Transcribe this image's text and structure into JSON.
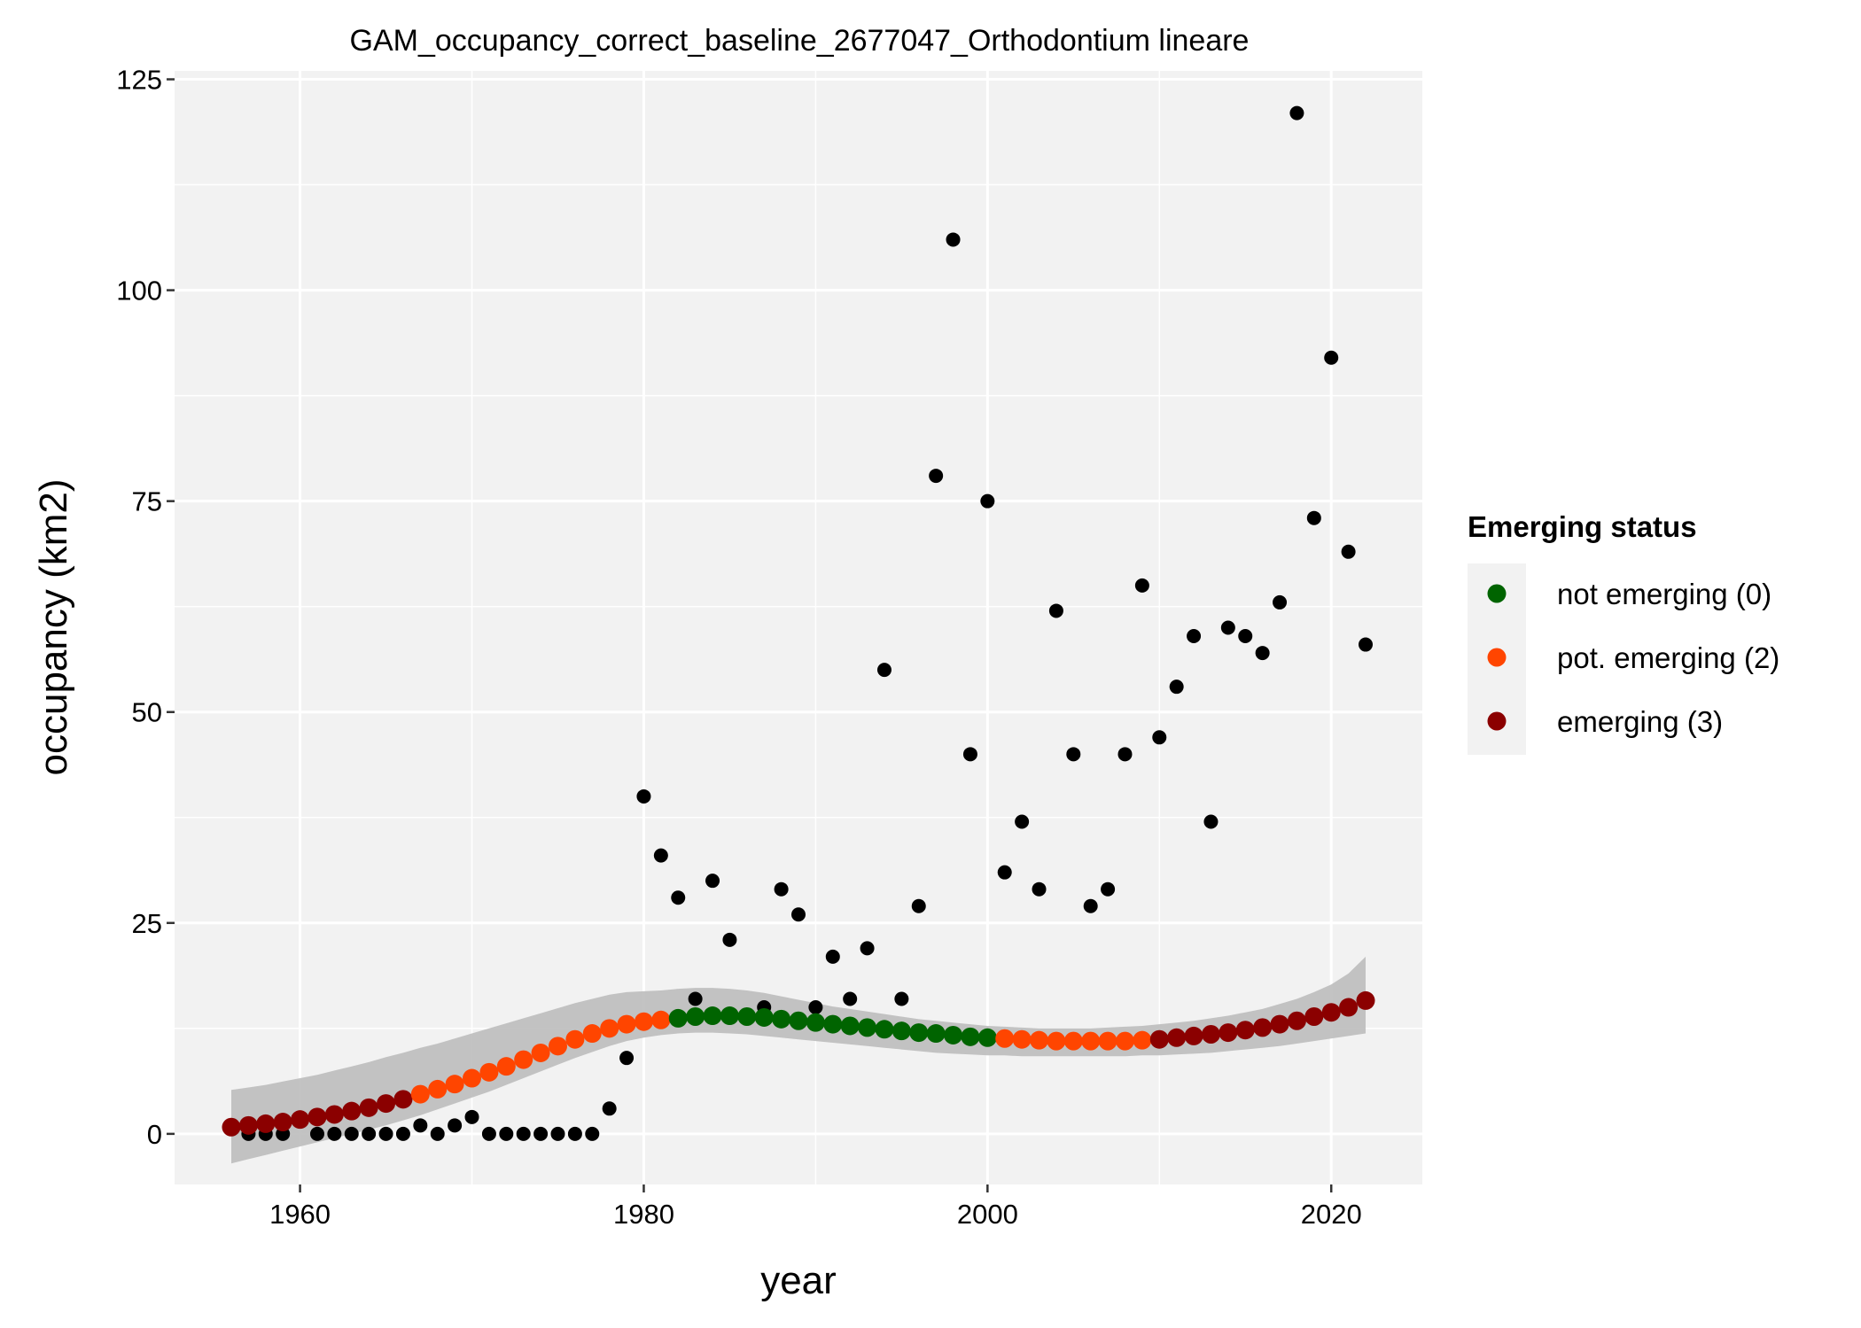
{
  "chart_data": {
    "type": "scatter",
    "title": "GAM_occupancy_correct_baseline_2677047_Orthodontium lineare",
    "xlabel": "year",
    "ylabel": "occupancy (km2)",
    "xlim": [
      1952.7,
      2025.3
    ],
    "ylim": [
      -6,
      126
    ],
    "x_ticks": [
      1960,
      1980,
      2000,
      2020
    ],
    "y_ticks": [
      0,
      25,
      50,
      75,
      100,
      125
    ],
    "grid": true,
    "panel_background": "#f2f2f2",
    "grid_color": "#ffffff",
    "observed": {
      "color": "#000000",
      "x": [
        1957,
        1958,
        1959,
        1961,
        1962,
        1963,
        1964,
        1965,
        1966,
        1967,
        1968,
        1969,
        1970,
        1971,
        1972,
        1973,
        1974,
        1975,
        1976,
        1977,
        1978,
        1979,
        1980,
        1981,
        1982,
        1983,
        1984,
        1985,
        1987,
        1988,
        1989,
        1990,
        1991,
        1992,
        1993,
        1994,
        1995,
        1996,
        1997,
        1998,
        1999,
        2000,
        2001,
        2002,
        2003,
        2004,
        2005,
        2006,
        2007,
        2008,
        2009,
        2010,
        2011,
        2012,
        2013,
        2014,
        2015,
        2016,
        2017,
        2018,
        2019,
        2020,
        2021,
        2022
      ],
      "y": [
        0,
        0,
        0,
        0,
        0,
        0,
        0,
        0,
        0,
        1,
        0,
        1,
        2,
        0,
        0,
        0,
        0,
        0,
        0,
        0,
        3,
        9,
        40,
        33,
        28,
        16,
        30,
        23,
        15,
        29,
        26,
        15,
        21,
        16,
        22,
        55,
        16,
        27,
        78,
        106,
        45,
        75,
        31,
        37,
        29,
        62,
        45,
        27,
        29,
        45,
        65,
        47,
        53,
        59,
        37,
        60,
        59,
        57,
        63,
        121,
        73,
        92,
        69,
        58
      ]
    },
    "smooth": {
      "x": [
        1956,
        1957,
        1958,
        1959,
        1960,
        1961,
        1962,
        1963,
        1964,
        1965,
        1966,
        1967,
        1968,
        1969,
        1970,
        1971,
        1972,
        1973,
        1974,
        1975,
        1976,
        1977,
        1978,
        1979,
        1980,
        1981,
        1982,
        1983,
        1984,
        1985,
        1986,
        1987,
        1988,
        1989,
        1990,
        1991,
        1992,
        1993,
        1994,
        1995,
        1996,
        1997,
        1998,
        1999,
        2000,
        2001,
        2002,
        2003,
        2004,
        2005,
        2006,
        2007,
        2008,
        2009,
        2010,
        2011,
        2012,
        2013,
        2014,
        2015,
        2016,
        2017,
        2018,
        2019,
        2020,
        2021,
        2022
      ],
      "y": [
        0.8,
        1.0,
        1.2,
        1.4,
        1.7,
        2.0,
        2.3,
        2.7,
        3.1,
        3.6,
        4.1,
        4.7,
        5.3,
        5.9,
        6.6,
        7.3,
        8.0,
        8.8,
        9.6,
        10.4,
        11.2,
        11.9,
        12.5,
        13.0,
        13.3,
        13.5,
        13.7,
        13.9,
        14.0,
        14.0,
        13.9,
        13.8,
        13.6,
        13.4,
        13.2,
        13.0,
        12.8,
        12.6,
        12.4,
        12.2,
        12.0,
        11.9,
        11.7,
        11.5,
        11.4,
        11.3,
        11.2,
        11.1,
        11.0,
        11.0,
        11.0,
        11.0,
        11.0,
        11.1,
        11.2,
        11.4,
        11.6,
        11.8,
        12.0,
        12.3,
        12.6,
        13.0,
        13.4,
        13.9,
        14.4,
        15.0,
        15.8
      ],
      "lower": [
        -3.5,
        -3.0,
        -2.5,
        -2.0,
        -1.5,
        -1.0,
        -0.5,
        0.0,
        0.5,
        1.0,
        1.6,
        2.2,
        2.9,
        3.6,
        4.3,
        5.0,
        5.8,
        6.6,
        7.4,
        8.2,
        9.0,
        9.7,
        10.4,
        11.0,
        11.4,
        11.7,
        11.9,
        12.0,
        12.0,
        11.9,
        11.8,
        11.6,
        11.4,
        11.2,
        11.0,
        10.8,
        10.6,
        10.4,
        10.2,
        10.0,
        9.8,
        9.6,
        9.5,
        9.4,
        9.3,
        9.3,
        9.2,
        9.2,
        9.2,
        9.2,
        9.2,
        9.2,
        9.2,
        9.3,
        9.3,
        9.4,
        9.5,
        9.6,
        9.8,
        10.0,
        10.2,
        10.4,
        10.7,
        11.0,
        11.3,
        11.6,
        11.9
      ],
      "upper": [
        5.2,
        5.5,
        5.8,
        6.2,
        6.6,
        7.0,
        7.5,
        8.0,
        8.5,
        9.1,
        9.6,
        10.2,
        10.7,
        11.3,
        11.9,
        12.5,
        13.1,
        13.7,
        14.3,
        14.9,
        15.5,
        16.0,
        16.5,
        16.8,
        16.9,
        17.0,
        17.2,
        17.3,
        17.3,
        17.2,
        17.0,
        16.7,
        16.3,
        15.9,
        15.5,
        15.1,
        14.8,
        14.5,
        14.2,
        13.9,
        13.6,
        13.4,
        13.2,
        13.0,
        12.8,
        12.7,
        12.6,
        12.5,
        12.5,
        12.5,
        12.5,
        12.6,
        12.7,
        12.8,
        13.0,
        13.2,
        13.4,
        13.7,
        14.0,
        14.4,
        14.8,
        15.4,
        16.0,
        16.8,
        17.7,
        19.0,
        21.0
      ],
      "status": [
        3,
        3,
        3,
        3,
        3,
        3,
        3,
        3,
        3,
        3,
        3,
        2,
        2,
        2,
        2,
        2,
        2,
        2,
        2,
        2,
        2,
        2,
        2,
        2,
        2,
        2,
        0,
        0,
        0,
        0,
        0,
        0,
        0,
        0,
        0,
        0,
        0,
        0,
        0,
        0,
        0,
        0,
        0,
        0,
        0,
        2,
        2,
        2,
        2,
        2,
        2,
        2,
        2,
        2,
        3,
        3,
        3,
        3,
        3,
        3,
        3,
        3,
        3,
        3,
        3,
        3,
        3
      ],
      "band_color": "#bdbdbd"
    },
    "legend": {
      "title": "Emerging status",
      "position": "right",
      "items": [
        {
          "label": "not emerging (0)",
          "status": 0,
          "color": "#006400"
        },
        {
          "label": "pot. emerging (2)",
          "status": 2,
          "color": "#ff4500"
        },
        {
          "label": "emerging (3)",
          "status": 3,
          "color": "#8b0000"
        }
      ]
    }
  }
}
